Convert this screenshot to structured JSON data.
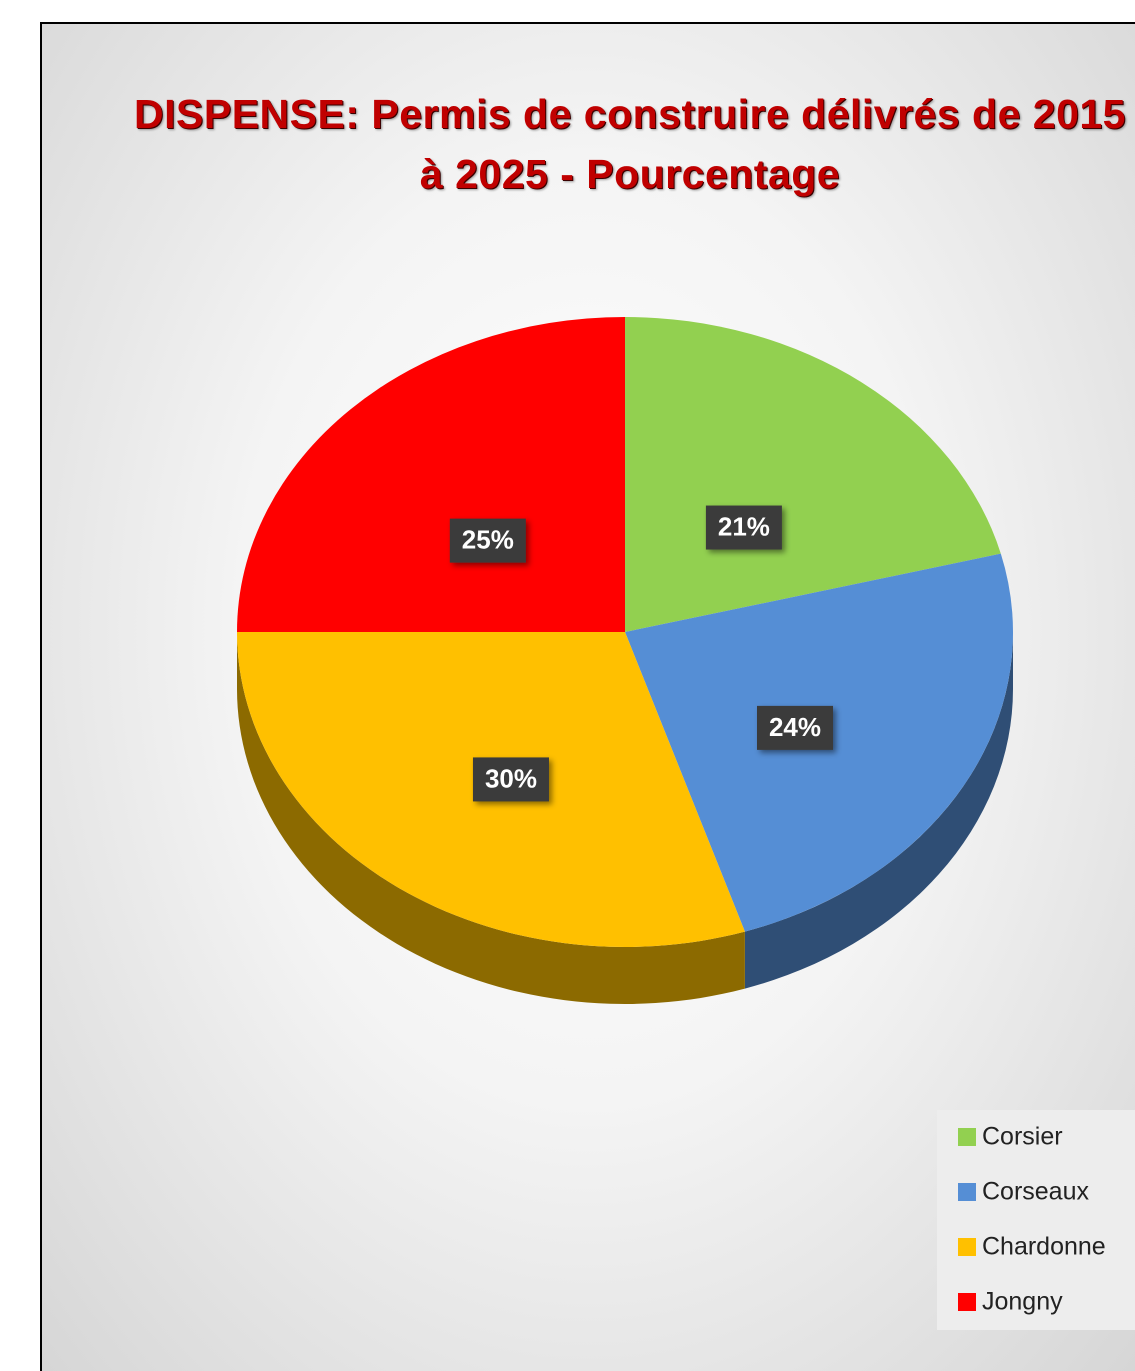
{
  "chart_data": {
    "type": "pie",
    "title": "DISPENSE: Permis de construire délivrés de 2015 à 2025 - Pourcentage",
    "categories": [
      "Corsier",
      "Corseaux",
      "Chardonne",
      "Jongny"
    ],
    "values": [
      21,
      24,
      30,
      25
    ],
    "value_labels": [
      "21%",
      "24%",
      "30%",
      "25%"
    ],
    "colors": [
      "#92d050",
      "#558ed5",
      "#ffc000",
      "#ff0000"
    ],
    "legend": "bottom-right"
  }
}
